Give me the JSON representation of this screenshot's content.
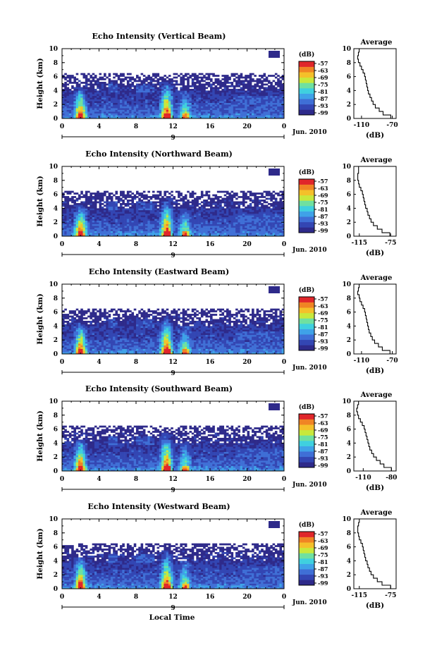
{
  "figure": {
    "x_label": "Local Time",
    "date_label": "Jun. 2010",
    "date_marker": "9",
    "height_label": "Height (km)",
    "average_title": "Average",
    "db_unit": "(dB)"
  },
  "chart_data": [
    {
      "type": "heatmap",
      "title": "Echo Intensity (Vertical Beam)",
      "xlabel": "",
      "ylabel": "Height (km)",
      "xlim": [
        0,
        24
      ],
      "ylim": [
        0,
        10
      ],
      "x_ticks": [
        "0",
        "4",
        "8",
        "12",
        "16",
        "20",
        "0"
      ],
      "y_ticks": [
        "0",
        "2",
        "4",
        "6",
        "8",
        "10"
      ],
      "colorbar": {
        "label": "(dB)",
        "ticks": [
          "-57",
          "-63",
          "-69",
          "-75",
          "-81",
          "-87",
          "-93",
          "-99"
        ]
      },
      "average_profile": {
        "title": "Average",
        "xlabel": "(dB)",
        "x_ticks": [
          "-110",
          "-70"
        ],
        "xlim": [
          -120,
          -65
        ],
        "ylim": [
          0,
          10
        ],
        "heights": [
          0.25,
          0.75,
          1.25,
          1.75,
          2.25,
          2.75,
          3.25,
          3.75,
          4.25,
          4.75,
          5.25,
          5.75,
          6.25,
          6.75,
          7.25,
          7.75,
          8.25,
          8.75,
          9.25,
          9.75
        ],
        "values": [
          -72,
          -82,
          -87,
          -92,
          -95,
          -97,
          -99,
          -101,
          -102,
          -103,
          -104,
          -105,
          -106,
          -108,
          -110,
          -112,
          -114,
          -115,
          -114,
          -113
        ]
      }
    },
    {
      "type": "heatmap",
      "title": "Echo Intensity (Northward Beam)",
      "xlabel": "",
      "ylabel": "Height (km)",
      "xlim": [
        0,
        24
      ],
      "ylim": [
        0,
        10
      ],
      "x_ticks": [
        "0",
        "4",
        "8",
        "12",
        "16",
        "20",
        "0"
      ],
      "y_ticks": [
        "0",
        "2",
        "4",
        "6",
        "8",
        "10"
      ],
      "colorbar": {
        "label": "(dB)",
        "ticks": [
          "-57",
          "-63",
          "-69",
          "-75",
          "-81",
          "-87",
          "-93",
          "-99"
        ]
      },
      "average_profile": {
        "title": "Average",
        "xlabel": "(dB)",
        "x_ticks": [
          "-115",
          "-75"
        ],
        "xlim": [
          -122,
          -68
        ],
        "ylim": [
          0,
          10
        ],
        "heights": [
          0.25,
          0.75,
          1.25,
          1.75,
          2.25,
          2.75,
          3.25,
          3.75,
          4.25,
          4.75,
          5.25,
          5.75,
          6.25,
          6.75,
          7.25,
          7.75,
          8.25,
          8.75,
          9.25,
          9.75
        ],
        "values": [
          -76,
          -86,
          -92,
          -97,
          -100,
          -102,
          -104,
          -105,
          -107,
          -108,
          -109,
          -110,
          -111,
          -113,
          -115,
          -116,
          -117,
          -117,
          -116,
          -116
        ]
      }
    },
    {
      "type": "heatmap",
      "title": "Echo Intensity (Eastward Beam)",
      "xlabel": "",
      "ylabel": "Height (km)",
      "xlim": [
        0,
        24
      ],
      "ylim": [
        0,
        10
      ],
      "x_ticks": [
        "0",
        "4",
        "8",
        "12",
        "16",
        "20",
        "0"
      ],
      "y_ticks": [
        "0",
        "2",
        "4",
        "6",
        "8",
        "10"
      ],
      "colorbar": {
        "label": "(dB)",
        "ticks": [
          "-57",
          "-63",
          "-69",
          "-75",
          "-81",
          "-87",
          "-93",
          "-99"
        ]
      },
      "average_profile": {
        "title": "Average",
        "xlabel": "(dB)",
        "x_ticks": [
          "-110",
          "-70"
        ],
        "xlim": [
          -120,
          -65
        ],
        "ylim": [
          0,
          10
        ],
        "heights": [
          0.25,
          0.75,
          1.25,
          1.75,
          2.25,
          2.75,
          3.25,
          3.75,
          4.25,
          4.75,
          5.25,
          5.75,
          6.25,
          6.75,
          7.25,
          7.75,
          8.25,
          8.75,
          9.25,
          9.75
        ],
        "values": [
          -73,
          -83,
          -88,
          -93,
          -96,
          -98,
          -100,
          -101,
          -102,
          -103,
          -104,
          -105,
          -106,
          -108,
          -110,
          -112,
          -113,
          -115,
          -114,
          -113
        ]
      }
    },
    {
      "type": "heatmap",
      "title": "Echo Intensity (Southward Beam)",
      "xlabel": "",
      "ylabel": "Height (km)",
      "xlim": [
        0,
        24
      ],
      "ylim": [
        0,
        10
      ],
      "x_ticks": [
        "0",
        "4",
        "8",
        "12",
        "16",
        "20",
        "0"
      ],
      "y_ticks": [
        "0",
        "2",
        "4",
        "6",
        "8",
        "10"
      ],
      "colorbar": {
        "label": "(dB)",
        "ticks": [
          "-57",
          "-63",
          "-69",
          "-75",
          "-81",
          "-87",
          "-93",
          "-99"
        ]
      },
      "average_profile": {
        "title": "Average",
        "xlabel": "(dB)",
        "x_ticks": [
          "-110",
          "-80"
        ],
        "xlim": [
          -120,
          -75
        ],
        "ylim": [
          0,
          10
        ],
        "heights": [
          0.25,
          0.75,
          1.25,
          1.75,
          2.25,
          2.75,
          3.25,
          3.75,
          4.25,
          4.75,
          5.25,
          5.75,
          6.25,
          6.75,
          7.25,
          7.75,
          8.25,
          8.75,
          9.25,
          9.75
        ],
        "values": [
          -80,
          -88,
          -92,
          -96,
          -99,
          -101,
          -103,
          -104,
          -105,
          -106,
          -107,
          -108,
          -109,
          -111,
          -113,
          -115,
          -116,
          -117,
          -116,
          -115
        ]
      }
    },
    {
      "type": "heatmap",
      "title": "Echo Intensity (Westward Beam)",
      "xlabel": "Local Time",
      "ylabel": "Height (km)",
      "xlim": [
        0,
        24
      ],
      "ylim": [
        0,
        10
      ],
      "x_ticks": [
        "0",
        "4",
        "8",
        "12",
        "16",
        "20",
        "0"
      ],
      "y_ticks": [
        "0",
        "2",
        "4",
        "6",
        "8",
        "10"
      ],
      "colorbar": {
        "label": "(dB)",
        "ticks": [
          "-57",
          "-63",
          "-69",
          "-75",
          "-81",
          "-87",
          "-93",
          "-99"
        ]
      },
      "average_profile": {
        "title": "Average",
        "xlabel": "(dB)",
        "x_ticks": [
          "-115",
          "-75"
        ],
        "xlim": [
          -122,
          -68
        ],
        "ylim": [
          0,
          10
        ],
        "heights": [
          0.25,
          0.75,
          1.25,
          1.75,
          2.25,
          2.75,
          3.25,
          3.75,
          4.25,
          4.75,
          5.25,
          5.75,
          6.25,
          6.75,
          7.25,
          7.75,
          8.25,
          8.75,
          9.25,
          9.75
        ],
        "values": [
          -75,
          -86,
          -92,
          -97,
          -100,
          -102,
          -104,
          -105,
          -107,
          -108,
          -109,
          -110,
          -111,
          -113,
          -115,
          -116,
          -117,
          -117,
          -116,
          -115
        ]
      }
    }
  ],
  "colormap": [
    "#2e2a8a",
    "#3346b3",
    "#3f6fd6",
    "#3fa2e8",
    "#3fd0df",
    "#6fe0a0",
    "#c8e83c",
    "#f4c02a",
    "#f08424",
    "#e0262a"
  ]
}
